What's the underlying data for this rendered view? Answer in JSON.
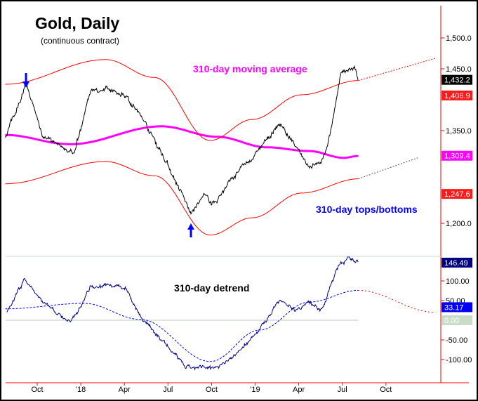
{
  "chart_data": [
    {
      "type": "line",
      "title": "Gold, Daily",
      "subtitle": "(continuous contract)",
      "x_unit": "months from Oct 2017",
      "ylim": [
        1160,
        1540
      ],
      "y_ticks": [
        "1,500.0",
        "1,450.0",
        "1,350.0",
        "1,200.0"
      ],
      "y_tick_values": [
        1500,
        1450,
        1350,
        1200
      ],
      "x_ticks": [
        "Oct",
        "'18",
        "Apr",
        "Jul",
        "Oct",
        "'19",
        "Apr",
        "Jul",
        "Oct"
      ],
      "x_tick_values": [
        0,
        3,
        6,
        9,
        12,
        15,
        18,
        21,
        24
      ],
      "annotations": {
        "ma": "310-day moving average",
        "bands": "310-day tops/bottoms"
      },
      "badges": [
        {
          "text": "1,432.2",
          "value": 1432.2,
          "color": "#000000"
        },
        {
          "text": "1,406.9",
          "value": 1406.9,
          "color": "#ff1a1a"
        },
        {
          "text": "1,309.4",
          "value": 1309.4,
          "color": "#ff00ff"
        },
        {
          "text": "1,247.6",
          "value": 1247.6,
          "color": "#ff1a1a"
        }
      ],
      "series": [
        {
          "name": "Gold price",
          "color": "#000000",
          "points": [
            [
              -2.2,
              1340
            ],
            [
              -0.77,
              1425
            ],
            [
              0.34,
              1345
            ],
            [
              2.51,
              1311
            ],
            [
              3.72,
              1419
            ],
            [
              6.14,
              1408
            ],
            [
              7.58,
              1357
            ],
            [
              9.03,
              1294
            ],
            [
              10.58,
              1215
            ],
            [
              11.45,
              1243
            ],
            [
              12.17,
              1232
            ],
            [
              13.38,
              1272
            ],
            [
              14.83,
              1306
            ],
            [
              15.56,
              1328
            ],
            [
              16.76,
              1362
            ],
            [
              17.73,
              1323
            ],
            [
              18.7,
              1294
            ],
            [
              19.66,
              1300
            ],
            [
              20.14,
              1345
            ],
            [
              20.87,
              1436
            ],
            [
              21.35,
              1448
            ],
            [
              21.84,
              1453
            ],
            [
              22.08,
              1431
            ]
          ]
        },
        {
          "name": "310-day moving average",
          "color": "#ff00ff",
          "points": [
            [
              -2.2,
              1343
            ],
            [
              2.27,
              1328
            ],
            [
              8.55,
              1357
            ],
            [
              12.4,
              1340
            ],
            [
              15.8,
              1323
            ],
            [
              18.7,
              1317
            ],
            [
              21.1,
              1306
            ],
            [
              22.1,
              1309
            ]
          ]
        },
        {
          "name": "Upper band",
          "color": "#ff0000",
          "points": [
            [
              -2.2,
              1425
            ],
            [
              4.7,
              1465
            ],
            [
              8.07,
              1436
            ],
            [
              11.9,
              1334
            ],
            [
              14.8,
              1368
            ],
            [
              18.2,
              1408
            ],
            [
              22.1,
              1431
            ]
          ],
          "projection": [
            [
              22.1,
              1431
            ],
            [
              27.4,
              1467
            ]
          ]
        },
        {
          "name": "Lower band",
          "color": "#ff0000",
          "points": [
            [
              -2.2,
              1264
            ],
            [
              4.7,
              1300
            ],
            [
              8.07,
              1277
            ],
            [
              11.9,
              1181
            ],
            [
              14.8,
              1209
            ],
            [
              18.2,
              1249
            ],
            [
              22.1,
              1272
            ]
          ],
          "projection": [
            [
              22.1,
              1272
            ],
            [
              26.2,
              1306
            ]
          ]
        }
      ],
      "arrows": [
        {
          "direction": "down",
          "x": -0.77,
          "value": 1425
        },
        {
          "direction": "up",
          "x": 10.58,
          "value": 1215
        }
      ]
    },
    {
      "type": "line",
      "title": "310-day detrend",
      "ylim": [
        -150,
        160
      ],
      "y_ticks": [
        "100.00",
        "50.00",
        "-50.00",
        "-100.00"
      ],
      "y_tick_values": [
        100,
        50,
        -50,
        -100
      ],
      "badges": [
        {
          "text": "146.49",
          "value": 146.49,
          "color": "#000080"
        },
        {
          "text": "33.17",
          "value": 33.17,
          "color": "#0000ff"
        },
        {
          "text": "0.00",
          "value": 0,
          "color": "#c8dcc8"
        }
      ],
      "series": [
        {
          "name": "Detrend",
          "color": "#00008b",
          "points": [
            [
              -2.08,
              20
            ],
            [
              -0.87,
              105
            ],
            [
              0.34,
              46
            ],
            [
              2.27,
              -7
            ],
            [
              3.72,
              91
            ],
            [
              6.14,
              82
            ],
            [
              7.1,
              11
            ],
            [
              9.03,
              -70
            ],
            [
              10.24,
              -123
            ],
            [
              11.93,
              -123
            ],
            [
              13.38,
              -96
            ],
            [
              14.83,
              -43
            ],
            [
              15.8,
              2
            ],
            [
              16.76,
              55
            ],
            [
              17.73,
              29
            ],
            [
              18.7,
              46
            ],
            [
              19.66,
              29
            ],
            [
              20.14,
              82
            ],
            [
              20.87,
              150
            ],
            [
              21.6,
              154
            ],
            [
              22.08,
              146
            ]
          ]
        },
        {
          "name": "Cycle",
          "color": "#0000ff",
          "dashed": true,
          "points": [
            [
              -2.2,
              29
            ],
            [
              3.24,
              43
            ],
            [
              7.1,
              2
            ],
            [
              11.93,
              -105
            ],
            [
              15.3,
              -25
            ],
            [
              18.7,
              46
            ],
            [
              22.08,
              76
            ]
          ],
          "projection": [
            [
              22.08,
              76
            ],
            [
              27.4,
              20
            ]
          ]
        }
      ]
    }
  ]
}
